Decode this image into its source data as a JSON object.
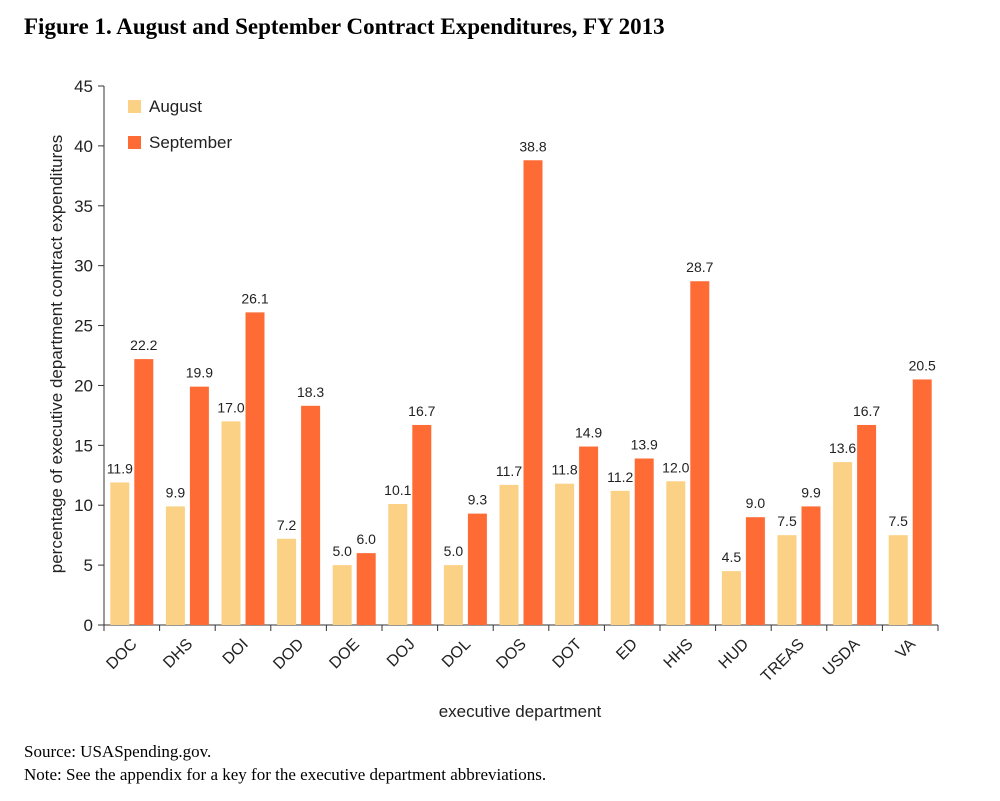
{
  "figure_title": "Figure 1. August and September Contract Expenditures, FY 2013",
  "source": "Source: USASpending.gov.",
  "note": "Note: See the appendix for a key for the executive department abbreviations.",
  "colors": {
    "august": "#fbd185",
    "september": "#ff6b35",
    "axis": "#333333"
  },
  "chart_data": {
    "type": "bar",
    "title": "Figure 1. August and September Contract Expenditures, FY 2013",
    "xlabel": "executive department",
    "ylabel": "percentage of executive department contract expenditures",
    "ylim": [
      0,
      45
    ],
    "yticks": [
      0,
      5,
      10,
      15,
      20,
      25,
      30,
      35,
      40,
      45
    ],
    "grid": false,
    "legend_position": "top-left",
    "categories": [
      "DOC",
      "DHS",
      "DOI",
      "DOD",
      "DOE",
      "DOJ",
      "DOL",
      "DOS",
      "DOT",
      "ED",
      "HHS",
      "HUD",
      "TREAS",
      "USDA",
      "VA"
    ],
    "series": [
      {
        "name": "August",
        "values": [
          11.9,
          9.9,
          17.0,
          7.2,
          5.0,
          10.1,
          5.0,
          11.7,
          11.8,
          11.2,
          12.0,
          4.5,
          7.5,
          13.6,
          7.5
        ],
        "labels": [
          "11.9",
          "9.9",
          "17.0",
          "7.2",
          "5.0",
          "10.1",
          "5.0",
          "11.7",
          "11.8",
          "11.2",
          "12.0",
          "4.5",
          "7.5",
          "13.6",
          "7.5"
        ]
      },
      {
        "name": "September",
        "values": [
          22.2,
          19.9,
          26.1,
          18.3,
          6.0,
          16.7,
          9.3,
          38.8,
          14.9,
          13.9,
          28.7,
          9.0,
          9.9,
          16.7,
          20.5
        ],
        "labels": [
          "22.2",
          "19.9",
          "26.1",
          "18.3",
          "6.0",
          "16.7",
          "9.3",
          "38.8",
          "14.9",
          "13.9",
          "28.7",
          "9.0",
          "9.9",
          "16.7",
          "20.5"
        ]
      }
    ]
  }
}
